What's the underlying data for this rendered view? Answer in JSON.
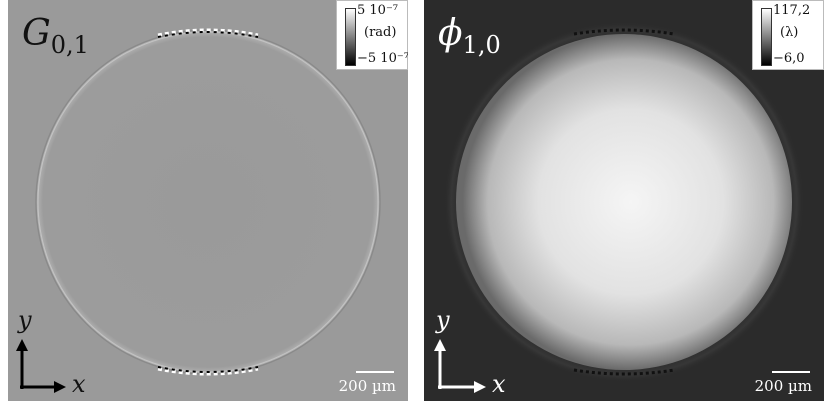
{
  "left_panel": {
    "title_symbol": "G",
    "title_subscript": "0,1",
    "colorbar": {
      "max": "5 10⁻⁷",
      "unit": "(rad)",
      "min": "−5 10⁻⁷"
    },
    "axis_y": "y",
    "axis_x": "x",
    "scale_bar": "200 µm",
    "background_color": "#9a9a9a"
  },
  "right_panel": {
    "title_symbol": "ϕ",
    "title_subscript": "1,0",
    "colorbar": {
      "max": "117,2",
      "unit": "(λ)",
      "min": "−6,0"
    },
    "axis_y": "y",
    "axis_x": "x",
    "scale_bar": "200 µm",
    "background_color": "#2b2b2b"
  }
}
